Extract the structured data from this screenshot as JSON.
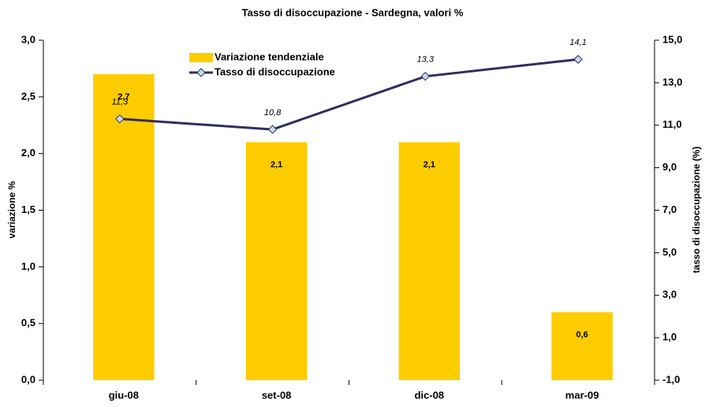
{
  "chart_data": {
    "type": "bar",
    "title": "Tasso di disoccupazione - Sardegna, valori %",
    "categories": [
      "giu-08",
      "set-08",
      "dic-08",
      "mar-09"
    ],
    "series": [
      {
        "name": "Variazione tendenziale",
        "color": "#FFCC00",
        "values": [
          2.7,
          2.1,
          2.1,
          0.6
        ],
        "value_labels": [
          "2,7",
          "2,1",
          "2,1",
          "0,6"
        ]
      },
      {
        "name": "Tasso di disoccupazione",
        "type": "line",
        "axis": "y2",
        "color": "#2E2E5E",
        "values": [
          11.3,
          10.8,
          13.3,
          14.1
        ],
        "value_labels": [
          "11,3",
          "10,8",
          "13,3",
          "14,1"
        ]
      }
    ],
    "ylabel": "variazione %",
    "y2label": "tasso di disoccupazione (%)",
    "ylim": [
      0,
      3
    ],
    "yticks": [
      {
        "value": 0,
        "label": "0,0"
      },
      {
        "value": 0.5,
        "label": "0,5"
      },
      {
        "value": 1,
        "label": "1,0"
      },
      {
        "value": 1.5,
        "label": "1,5"
      },
      {
        "value": 2,
        "label": "2,0"
      },
      {
        "value": 2.5,
        "label": "2,5"
      },
      {
        "value": 3,
        "label": "3,0"
      }
    ],
    "y2lim": [
      -1,
      15
    ],
    "y2ticks": [
      {
        "value": -1,
        "label": "-1,0"
      },
      {
        "value": 1,
        "label": "1,0"
      },
      {
        "value": 3,
        "label": "3,0"
      },
      {
        "value": 5,
        "label": "5,0"
      },
      {
        "value": 7,
        "label": "7,0"
      },
      {
        "value": 9,
        "label": "9,0"
      },
      {
        "value": 11,
        "label": "11,0"
      },
      {
        "value": 13,
        "label": "13,0"
      },
      {
        "value": 15,
        "label": "15,0"
      }
    ],
    "grid": false
  }
}
